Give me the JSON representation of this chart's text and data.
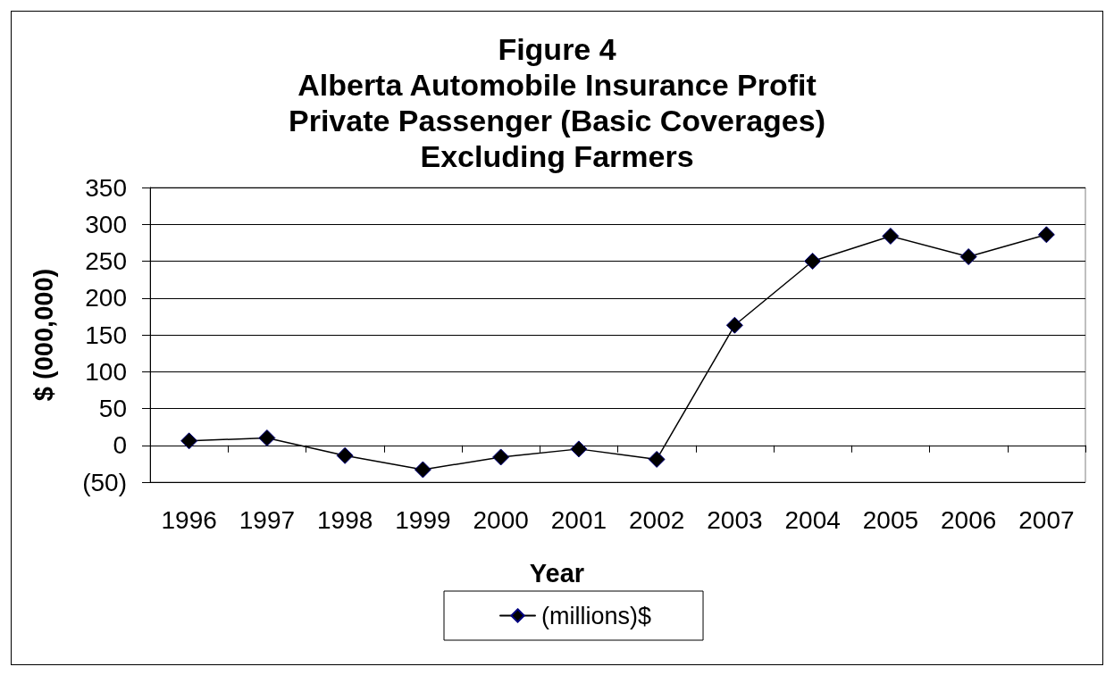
{
  "chart_data": {
    "type": "line",
    "title": "Figure 4\nAlberta Automobile Insurance Profit\nPrivate Passenger (Basic Coverages)\nExcluding Farmers",
    "xlabel": "Year",
    "ylabel": "$ (000,000)",
    "categories": [
      "1996",
      "1997",
      "1998",
      "1999",
      "2000",
      "2001",
      "2002",
      "2003",
      "2004",
      "2005",
      "2006",
      "2007"
    ],
    "series": [
      {
        "name": "(millions)$",
        "color": "#000000",
        "values": [
          6,
          10,
          -14,
          -33,
          -16,
          -5,
          -19,
          163,
          250,
          284,
          256,
          286
        ]
      }
    ],
    "ylim": [
      -50,
      350
    ],
    "yticks": [
      {
        "value": -50,
        "label": "(50)"
      },
      0,
      50,
      100,
      150,
      200,
      250,
      300,
      350
    ],
    "grid": "y",
    "legend": "bottom",
    "marker": "diamond",
    "line_style": "solid"
  }
}
